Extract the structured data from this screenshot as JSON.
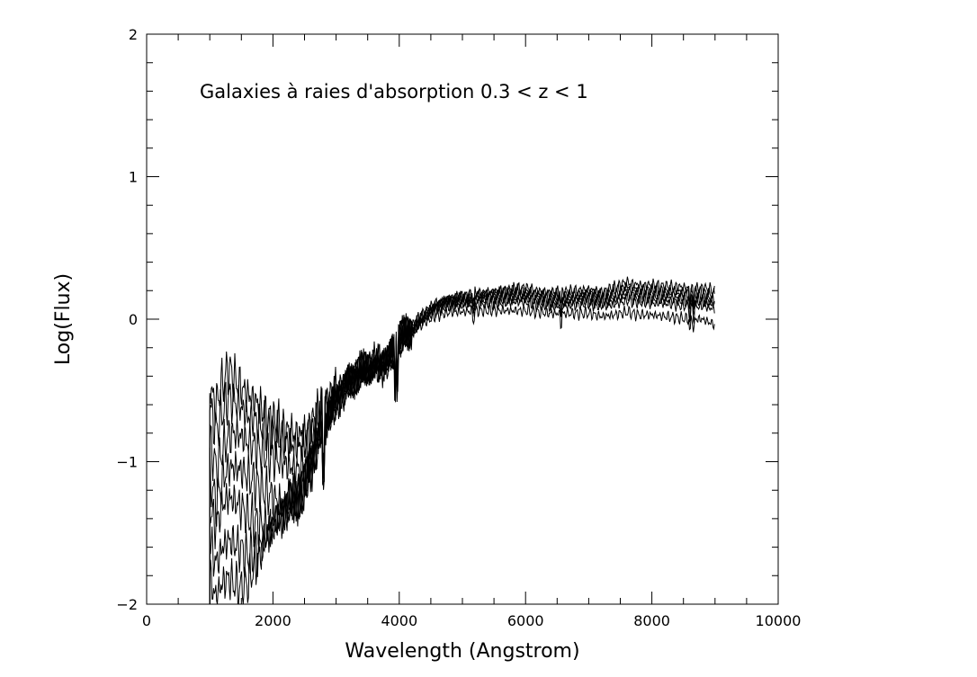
{
  "chart_data": {
    "type": "line",
    "title": "Galaxies à raies d'absorption 0.3 < z < 1",
    "xlabel": "Wavelength (Angstrom)",
    "ylabel": "Log(Flux)",
    "xlim": [
      0,
      10000
    ],
    "ylim": [
      -2,
      2
    ],
    "x_ticks": [
      0,
      2000,
      4000,
      6000,
      8000,
      10000
    ],
    "y_ticks": [
      -2,
      -1,
      0,
      1,
      2
    ],
    "grid": false,
    "legend": "none",
    "line_color": "#000000",
    "x": [
      1000,
      1050,
      1100,
      1200,
      1300,
      1400,
      1500,
      1600,
      1700,
      1800,
      1900,
      2000,
      2100,
      2200,
      2300,
      2400,
      2500,
      2600,
      2700,
      2800,
      2900,
      3000,
      3200,
      3400,
      3600,
      3800,
      4000,
      4200,
      4400,
      4600,
      4800,
      5000,
      5200,
      5400,
      5600,
      5800,
      6000,
      6200,
      6400,
      6600,
      6800,
      7000,
      7200,
      7400,
      7600,
      7800,
      8000,
      8200,
      8400,
      8600,
      8800,
      9000
    ],
    "series": [
      {
        "values": [
          -0.45,
          -0.55,
          -0.6,
          -0.45,
          -0.35,
          -0.42,
          -0.48,
          -0.53,
          -0.56,
          -0.62,
          -0.68,
          -0.72,
          -0.76,
          -0.79,
          -0.8,
          -0.81,
          -0.8,
          -0.74,
          -0.68,
          -0.62,
          -0.58,
          -0.5,
          -0.4,
          -0.34,
          -0.3,
          -0.27,
          -0.1,
          -0.05,
          0.05,
          0.12,
          0.15,
          0.16,
          0.18,
          0.19,
          0.2,
          0.21,
          0.22,
          0.2,
          0.19,
          0.19,
          0.2,
          0.21,
          0.19,
          0.22,
          0.26,
          0.24,
          0.24,
          0.23,
          0.23,
          0.22,
          0.22,
          0.2
        ]
      },
      {
        "values": [
          -0.6,
          -0.7,
          -0.78,
          -0.65,
          -0.55,
          -0.58,
          -0.62,
          -0.68,
          -0.7,
          -0.74,
          -0.77,
          -0.8,
          -0.83,
          -0.86,
          -0.88,
          -0.89,
          -0.88,
          -0.8,
          -0.72,
          -0.65,
          -0.6,
          -0.52,
          -0.42,
          -0.35,
          -0.31,
          -0.28,
          -0.11,
          -0.06,
          0.04,
          0.11,
          0.14,
          0.15,
          0.17,
          0.18,
          0.19,
          0.2,
          0.2,
          0.18,
          0.17,
          0.17,
          0.18,
          0.19,
          0.17,
          0.2,
          0.23,
          0.21,
          0.21,
          0.2,
          0.2,
          0.19,
          0.19,
          0.17
        ]
      },
      {
        "values": [
          -0.85,
          -0.95,
          -1.05,
          -0.92,
          -0.82,
          -0.8,
          -0.82,
          -0.86,
          -0.89,
          -0.92,
          -0.95,
          -0.97,
          -0.99,
          -1.02,
          -1.04,
          -1.06,
          -1.0,
          -0.9,
          -0.8,
          -0.7,
          -0.63,
          -0.55,
          -0.43,
          -0.36,
          -0.32,
          -0.29,
          -0.12,
          -0.07,
          0.03,
          0.1,
          0.13,
          0.14,
          0.16,
          0.17,
          0.17,
          0.18,
          0.18,
          0.16,
          0.15,
          0.15,
          0.16,
          0.17,
          0.15,
          0.17,
          0.21,
          0.19,
          0.19,
          0.18,
          0.18,
          0.17,
          0.16,
          0.14
        ]
      },
      {
        "values": [
          -1.1,
          -1.2,
          -1.3,
          -1.12,
          -1.05,
          -1.04,
          -1.06,
          -1.1,
          -1.14,
          -1.18,
          -1.22,
          -1.25,
          -1.28,
          -1.3,
          -1.3,
          -1.26,
          -1.2,
          -1.05,
          -0.88,
          -0.74,
          -0.66,
          -0.56,
          -0.44,
          -0.37,
          -0.33,
          -0.3,
          -0.13,
          -0.08,
          0.02,
          0.09,
          0.12,
          0.13,
          0.14,
          0.15,
          0.15,
          0.16,
          0.16,
          0.14,
          0.13,
          0.13,
          0.14,
          0.15,
          0.13,
          0.15,
          0.18,
          0.17,
          0.16,
          0.16,
          0.15,
          0.14,
          0.14,
          0.12
        ]
      },
      {
        "values": [
          -1.3,
          -1.4,
          -1.45,
          -1.3,
          -1.25,
          -1.28,
          -1.32,
          -1.38,
          -1.42,
          -1.45,
          -1.46,
          -1.44,
          -1.4,
          -1.35,
          -1.3,
          -1.25,
          -1.18,
          -1.05,
          -0.88,
          -0.75,
          -0.67,
          -0.57,
          -0.45,
          -0.38,
          -0.34,
          -0.31,
          -0.14,
          -0.09,
          0.01,
          0.08,
          0.11,
          0.11,
          0.12,
          0.13,
          0.13,
          0.14,
          0.14,
          0.12,
          0.11,
          0.11,
          0.12,
          0.13,
          0.11,
          0.13,
          0.16,
          0.14,
          0.14,
          0.13,
          0.13,
          0.12,
          0.12,
          0.1
        ]
      },
      {
        "values": [
          -1.55,
          -1.65,
          -1.72,
          -1.6,
          -1.55,
          -1.58,
          -1.62,
          -1.66,
          -1.65,
          -1.6,
          -1.52,
          -1.45,
          -1.38,
          -1.32,
          -1.27,
          -1.22,
          -1.15,
          -1.02,
          -0.87,
          -0.75,
          -0.68,
          -0.58,
          -0.46,
          -0.39,
          -0.35,
          -0.32,
          -0.15,
          -0.1,
          0.0,
          0.06,
          0.09,
          0.09,
          0.1,
          0.11,
          0.11,
          0.12,
          0.12,
          0.1,
          0.09,
          0.09,
          0.1,
          0.11,
          0.09,
          0.1,
          0.13,
          0.12,
          0.11,
          0.11,
          0.1,
          0.09,
          0.09,
          0.07
        ]
      },
      {
        "values": [
          -1.8,
          -1.9,
          -1.95,
          -1.85,
          -1.82,
          -1.86,
          -1.9,
          -1.85,
          -1.75,
          -1.65,
          -1.55,
          -1.47,
          -1.4,
          -1.33,
          -1.27,
          -1.22,
          -1.14,
          -1.01,
          -0.86,
          -0.75,
          -0.68,
          -0.59,
          -0.47,
          -0.4,
          -0.36,
          -0.33,
          -0.16,
          -0.11,
          -0.02,
          0.03,
          0.05,
          0.05,
          0.06,
          0.06,
          0.06,
          0.06,
          0.06,
          0.05,
          0.04,
          0.04,
          0.04,
          0.04,
          0.02,
          0.03,
          0.05,
          0.03,
          0.03,
          0.02,
          0.01,
          0.0,
          0.0,
          -0.04
        ]
      }
    ]
  }
}
